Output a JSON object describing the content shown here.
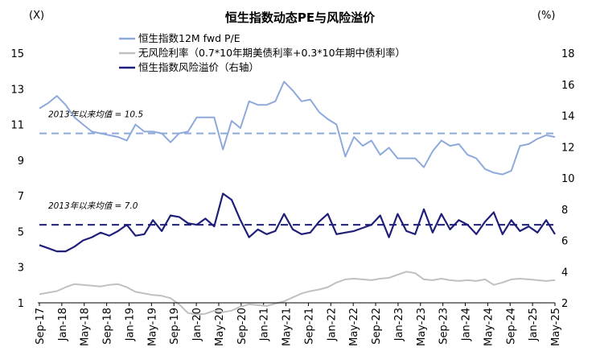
{
  "chart_data": {
    "type": "line",
    "title": "恒生指数动态PE与风险溢价",
    "left_unit": "(X)",
    "right_unit": "(%)",
    "ylim_left": [
      1,
      15
    ],
    "ylim_right": [
      2,
      18
    ],
    "yticks_left": [
      1,
      3,
      5,
      7,
      9,
      11,
      13,
      15
    ],
    "yticks_right": [
      2,
      4,
      6,
      8,
      10,
      12,
      14,
      16,
      18
    ],
    "x_ticks": [
      "Sep-17",
      "Jan-18",
      "May-18",
      "Sep-18",
      "Jan-19",
      "May-19",
      "Sep-19",
      "Jan-20",
      "May-20",
      "Sep-20",
      "Jan-21",
      "May-21",
      "Sep-21",
      "Jan-22",
      "May-22",
      "Sep-22",
      "Jan-23",
      "May-23",
      "Sep-23",
      "Jan-24",
      "May-24",
      "Sep-24",
      "Jan-25",
      "May-25"
    ],
    "legend": [
      {
        "label": "恒生指数12M fwd P/E",
        "color": "#8ea9db"
      },
      {
        "label": "无风险利率（0.7*10年期美债利率+0.3*10年期中债利率）",
        "color": "#c0c0c0"
      },
      {
        "label": "恒生指数风险溢价（右轴）",
        "color": "#1f1f7a"
      }
    ],
    "annotations": [
      {
        "text": "2013年以来均值 = 10.5",
        "axis": "left",
        "value": 10.5,
        "color": "#8ea9db"
      },
      {
        "text": "2013年以来均值 = 7.0",
        "axis": "right",
        "value": 7.0,
        "color": "#1f1f7a"
      }
    ],
    "series": [
      {
        "name": "恒生指数12M fwd P/E",
        "axis": "left",
        "color": "#8ea9db",
        "values": [
          11.9,
          12.2,
          12.6,
          12.1,
          11.4,
          11.0,
          10.6,
          10.5,
          10.4,
          10.3,
          10.1,
          11.0,
          10.6,
          10.6,
          10.5,
          10.0,
          10.5,
          10.6,
          11.4,
          11.4,
          11.4,
          9.6,
          11.2,
          10.8,
          12.3,
          12.1,
          12.1,
          12.3,
          13.4,
          12.9,
          12.3,
          12.4,
          11.7,
          11.3,
          11.0,
          9.2,
          10.3,
          9.8,
          10.1,
          9.3,
          9.7,
          9.1,
          9.1,
          9.1,
          8.6,
          9.5,
          10.1,
          9.8,
          9.9,
          9.3,
          9.1,
          8.5,
          8.3,
          8.2,
          8.4,
          9.8,
          9.9,
          10.2,
          10.4,
          10.3
        ]
      },
      {
        "name": "无风险利率（0.7*10年期美债利率+0.3*10年期中债利率）",
        "axis": "right",
        "color": "#c0c0c0",
        "values": [
          2.55,
          2.65,
          2.75,
          3.0,
          3.2,
          3.15,
          3.1,
          3.05,
          3.15,
          3.2,
          3.0,
          2.7,
          2.6,
          2.5,
          2.45,
          2.3,
          1.9,
          1.35,
          1.25,
          1.3,
          1.5,
          1.4,
          1.5,
          1.75,
          1.9,
          1.85,
          1.8,
          1.95,
          2.1,
          2.35,
          2.6,
          2.75,
          2.85,
          3.0,
          3.3,
          3.5,
          3.55,
          3.5,
          3.45,
          3.55,
          3.6,
          3.8,
          4.0,
          3.9,
          3.5,
          3.45,
          3.55,
          3.45,
          3.4,
          3.45,
          3.4,
          3.5,
          3.15,
          3.3,
          3.5,
          3.55,
          3.5,
          3.45,
          3.4,
          3.45
        ]
      },
      {
        "name": "恒生指数风险溢价（右轴）",
        "axis": "right",
        "color": "#1f1f7a",
        "values": [
          5.7,
          5.5,
          5.3,
          5.3,
          5.6,
          6.0,
          6.2,
          6.5,
          6.3,
          6.6,
          7.0,
          6.3,
          6.4,
          7.3,
          6.6,
          7.6,
          7.5,
          7.1,
          7.0,
          7.4,
          6.9,
          9.0,
          8.6,
          7.3,
          6.2,
          6.7,
          6.4,
          6.6,
          7.7,
          6.7,
          6.4,
          6.5,
          7.2,
          7.7,
          6.4,
          6.5,
          6.6,
          6.8,
          7.0,
          7.6,
          6.2,
          7.7,
          6.6,
          6.4,
          8.0,
          6.5,
          7.7,
          6.7,
          7.3,
          7.0,
          6.4,
          7.2,
          7.8,
          6.4,
          7.3,
          6.6,
          6.9,
          6.5,
          7.3,
          6.4
        ]
      }
    ]
  }
}
